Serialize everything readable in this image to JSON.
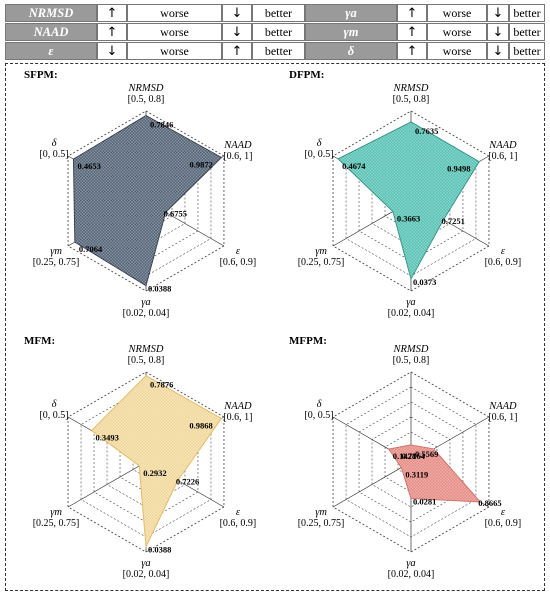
{
  "legend": {
    "rows": [
      {
        "m1": "NRMSD",
        "a1": "↑",
        "w1": "worse",
        "b1a": "↓",
        "b1": "better",
        "m2": "γa",
        "a2": "↑",
        "w2": "worse",
        "b2a": "↓",
        "b2": "better"
      },
      {
        "m1": "NAAD",
        "a1": "↑",
        "w1": "worse",
        "b1a": "↓",
        "b1": "better",
        "m2": "γm",
        "a2": "↑",
        "w2": "worse",
        "b2a": "↓",
        "b2": "better"
      },
      {
        "m1": "ε",
        "a1": "↓",
        "w1": "worse",
        "b1a": "↑",
        "b1": "better",
        "m2": "δ",
        "a2": "↑",
        "w2": "worse",
        "b2a": "↓",
        "b2": "better"
      }
    ]
  },
  "colors": {
    "SFPM": "#5b6a7c",
    "DFPM": "#5ec4b6",
    "MFPM_fill": "#f2d9a0",
    "MFPM_edge": "#e0b860",
    "MFPM2_fill": "#e8908a",
    "grid": "#444444"
  },
  "chart_data": [
    {
      "type": "radar",
      "title": "SFPM:",
      "axes": [
        {
          "name": "NRMSD",
          "range_label": "[0.5, 0.8]",
          "min": 0.5,
          "max": 0.8
        },
        {
          "name": "NAAD",
          "range_label": "[0.6, 1]",
          "min": 0.6,
          "max": 1
        },
        {
          "name": "ε",
          "range_label": "[0.6, 0.9]",
          "min": 0.6,
          "max": 0.9
        },
        {
          "name": "γa",
          "range_label": "[0.02, 0.04]",
          "min": 0.02,
          "max": 0.04
        },
        {
          "name": "γm",
          "range_label": "[0.25, 0.75]",
          "min": 0.25,
          "max": 0.75
        },
        {
          "name": "δ",
          "range_label": "[0, 0.5]",
          "min": 0,
          "max": 0.5
        }
      ],
      "values": [
        0.7846,
        0.9872,
        0.6755,
        0.0388,
        0.7064,
        0.4653
      ],
      "value_labels": [
        "0.7846",
        "0.9872",
        "0.6755",
        "0.0388",
        "0.7064",
        "0.4653"
      ]
    },
    {
      "type": "radar",
      "title": "DFPM:",
      "axes": [
        {
          "name": "NRMSD",
          "range_label": "[0.5, 0.8]",
          "min": 0.5,
          "max": 0.8
        },
        {
          "name": "NAAD",
          "range_label": "[0.6, 1]",
          "min": 0.6,
          "max": 1
        },
        {
          "name": "ε",
          "range_label": "[0.6, 0.9]",
          "min": 0.6,
          "max": 0.9
        },
        {
          "name": "γa",
          "range_label": "[0.02, 0.04]",
          "min": 0.02,
          "max": 0.04
        },
        {
          "name": "γm",
          "range_label": "[0.25, 0.75]",
          "min": 0.25,
          "max": 0.75
        },
        {
          "name": "δ",
          "range_label": "[0, 0.5]",
          "min": 0,
          "max": 0.5
        }
      ],
      "values": [
        0.7635,
        0.9498,
        0.7251,
        0.0373,
        0.3663,
        0.4674
      ],
      "value_labels": [
        "0.7635",
        "0.9498",
        "0.7251",
        "0.0373",
        "0.3663",
        "0.4674"
      ]
    },
    {
      "type": "radar",
      "title": "MFM:",
      "axes": [
        {
          "name": "NRMSD",
          "range_label": "[0.5, 0.8]",
          "min": 0.5,
          "max": 0.8
        },
        {
          "name": "NAAD",
          "range_label": "[0.6, 1]",
          "min": 0.6,
          "max": 1
        },
        {
          "name": "ε",
          "range_label": "[0.6, 0.9]",
          "min": 0.6,
          "max": 0.9
        },
        {
          "name": "γa",
          "range_label": "[0.02, 0.04]",
          "min": 0.02,
          "max": 0.04
        },
        {
          "name": "γm",
          "range_label": "[0.25, 0.75]",
          "min": 0.25,
          "max": 0.75
        },
        {
          "name": "δ",
          "range_label": "[0, 0.5]",
          "min": 0,
          "max": 0.5
        }
      ],
      "values": [
        0.7876,
        0.9868,
        0.7226,
        0.0388,
        0.2932,
        0.3493
      ],
      "value_labels": [
        "0.7876",
        "0.9868",
        "0.7226",
        "0.0388",
        "0.2932",
        "0.3493"
      ]
    },
    {
      "type": "radar",
      "title": "MFPM:",
      "axes": [
        {
          "name": "NRMSD",
          "range_label": "[0.5, 0.8]",
          "min": 0.5,
          "max": 0.8
        },
        {
          "name": "NAAD",
          "range_label": "[0.6, 1]",
          "min": 0.6,
          "max": 1
        },
        {
          "name": "ε",
          "range_label": "[0.6, 0.9]",
          "min": 0.6,
          "max": 0.9
        },
        {
          "name": "γa",
          "range_label": "[0.02, 0.04]",
          "min": 0.02,
          "max": 0.04
        },
        {
          "name": "γm",
          "range_label": "[0.25, 0.75]",
          "min": 0.25,
          "max": 0.75
        },
        {
          "name": "δ",
          "range_label": "[0, 0.5]",
          "min": 0,
          "max": 0.5
        }
      ],
      "values": [
        0.5569,
        0.7164,
        0.8665,
        0.0281,
        0.3119,
        0.1428
      ],
      "value_labels": [
        "0.5569",
        "0.7164",
        "0.8665",
        "0.0281",
        "0.3119",
        "0.1428"
      ]
    }
  ]
}
